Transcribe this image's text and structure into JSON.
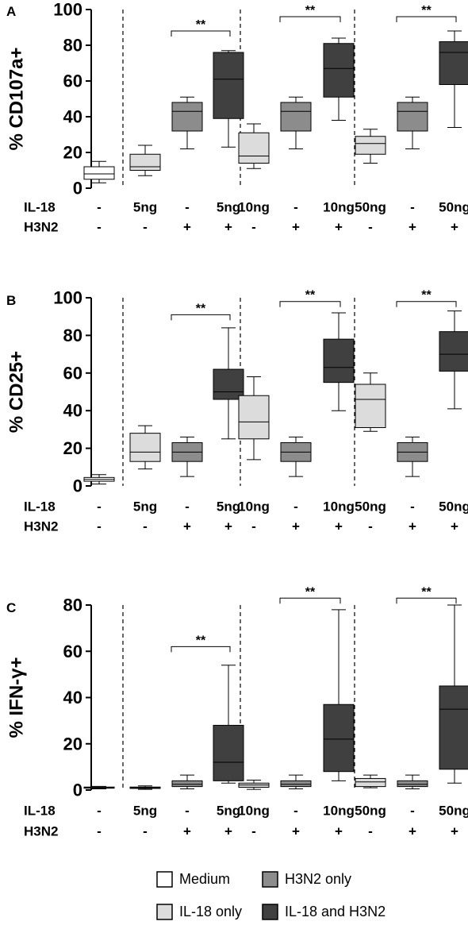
{
  "chart_data": [
    {
      "type": "box",
      "panel_label": "A",
      "ylabel": "% CD107a+",
      "ylim": [
        0,
        100
      ],
      "yticks": [
        0,
        20,
        40,
        60,
        80,
        100
      ],
      "row_labels": [
        "IL-18",
        "H3N2"
      ],
      "groups": [
        {
          "il18": "-",
          "h3n2": "-",
          "series": "Medium",
          "whisker_low": 3,
          "q1": 5,
          "median": 8,
          "q3": 12,
          "whisker_high": 15
        },
        {
          "il18": "5ng",
          "h3n2": "-",
          "series": "IL-18 only",
          "whisker_low": 7,
          "q1": 10,
          "median": 12,
          "q3": 19,
          "whisker_high": 24
        },
        {
          "il18": "-",
          "h3n2": "+",
          "series": "H3N2 only",
          "whisker_low": 22,
          "q1": 32,
          "median": 43,
          "q3": 48,
          "whisker_high": 51
        },
        {
          "il18": "5ng",
          "h3n2": "+",
          "series": "IL-18 and H3N2",
          "whisker_low": 23,
          "q1": 39,
          "median": 61,
          "q3": 76,
          "whisker_high": 77
        },
        {
          "il18": "10ng",
          "h3n2": "-",
          "series": "IL-18 only",
          "whisker_low": 11,
          "q1": 14,
          "median": 18,
          "q3": 31,
          "whisker_high": 36
        },
        {
          "il18": "-",
          "h3n2": "+",
          "series": "H3N2 only",
          "whisker_low": 22,
          "q1": 32,
          "median": 43,
          "q3": 48,
          "whisker_high": 51
        },
        {
          "il18": "10ng",
          "h3n2": "+",
          "series": "IL-18 and H3N2",
          "whisker_low": 38,
          "q1": 51,
          "median": 67,
          "q3": 81,
          "whisker_high": 84
        },
        {
          "il18": "50ng",
          "h3n2": "-",
          "series": "IL-18 only",
          "whisker_low": 14,
          "q1": 19,
          "median": 25,
          "q3": 29,
          "whisker_high": 33
        },
        {
          "il18": "-",
          "h3n2": "+",
          "series": "H3N2 only",
          "whisker_low": 22,
          "q1": 32,
          "median": 43,
          "q3": 48,
          "whisker_high": 51
        },
        {
          "il18": "50ng",
          "h3n2": "+",
          "series": "IL-18 and H3N2",
          "whisker_low": 34,
          "q1": 58,
          "median": 76,
          "q3": 82,
          "whisker_high": 88
        }
      ],
      "dividers_after": [
        0,
        3,
        6
      ],
      "significance": [
        {
          "from": 2,
          "to": 3,
          "label": "**",
          "y": 88
        },
        {
          "from": 5,
          "to": 6,
          "label": "**",
          "y": 96
        },
        {
          "from": 8,
          "to": 9,
          "label": "**",
          "y": 96
        }
      ]
    },
    {
      "type": "box",
      "panel_label": "B",
      "ylabel": "% CD25+",
      "ylim": [
        0,
        100
      ],
      "yticks": [
        0,
        20,
        40,
        60,
        80,
        100
      ],
      "row_labels": [
        "IL-18",
        "H3N2"
      ],
      "groups": [
        {
          "il18": "-",
          "h3n2": "-",
          "series": "Medium",
          "whisker_low": 1,
          "q1": 2.5,
          "median": 3.5,
          "q3": 4.5,
          "whisker_high": 6
        },
        {
          "il18": "5ng",
          "h3n2": "-",
          "series": "IL-18 only",
          "whisker_low": 9,
          "q1": 13,
          "median": 18,
          "q3": 28,
          "whisker_high": 32
        },
        {
          "il18": "-",
          "h3n2": "+",
          "series": "H3N2 only",
          "whisker_low": 5,
          "q1": 13,
          "median": 18,
          "q3": 23,
          "whisker_high": 26
        },
        {
          "il18": "5ng",
          "h3n2": "+",
          "series": "IL-18 and H3N2",
          "whisker_low": 25,
          "q1": 46,
          "median": 50,
          "q3": 62,
          "whisker_high": 84
        },
        {
          "il18": "10ng",
          "h3n2": "-",
          "series": "IL-18 only",
          "whisker_low": 14,
          "q1": 25,
          "median": 34,
          "q3": 48,
          "whisker_high": 58
        },
        {
          "il18": "-",
          "h3n2": "+",
          "series": "H3N2 only",
          "whisker_low": 5,
          "q1": 13,
          "median": 18,
          "q3": 23,
          "whisker_high": 26
        },
        {
          "il18": "10ng",
          "h3n2": "+",
          "series": "IL-18 and H3N2",
          "whisker_low": 40,
          "q1": 55,
          "median": 63,
          "q3": 78,
          "whisker_high": 92
        },
        {
          "il18": "50ng",
          "h3n2": "-",
          "series": "IL-18 only",
          "whisker_low": 29,
          "q1": 31,
          "median": 46,
          "q3": 54,
          "whisker_high": 60
        },
        {
          "il18": "-",
          "h3n2": "+",
          "series": "H3N2 only",
          "whisker_low": 5,
          "q1": 13,
          "median": 18,
          "q3": 23,
          "whisker_high": 26
        },
        {
          "il18": "50ng",
          "h3n2": "+",
          "series": "IL-18 and H3N2",
          "whisker_low": 41,
          "q1": 61,
          "median": 70,
          "q3": 82,
          "whisker_high": 93
        }
      ],
      "dividers_after": [
        0,
        3,
        6
      ],
      "significance": [
        {
          "from": 2,
          "to": 3,
          "label": "**",
          "y": 91
        },
        {
          "from": 5,
          "to": 6,
          "label": "**",
          "y": 98
        },
        {
          "from": 8,
          "to": 9,
          "label": "**",
          "y": 98
        }
      ]
    },
    {
      "type": "box",
      "panel_label": "C",
      "ylabel": "% IFN-γ+",
      "ylim": [
        0,
        80
      ],
      "yticks": [
        0,
        20,
        40,
        60,
        80
      ],
      "row_labels": [
        "IL-18",
        "H3N2"
      ],
      "groups": [
        {
          "il18": "-",
          "h3n2": "-",
          "series": "Medium",
          "whisker_low": 0.5,
          "q1": 0.8,
          "median": 1.0,
          "q3": 1.3,
          "whisker_high": 1.6
        },
        {
          "il18": "5ng",
          "h3n2": "-",
          "series": "IL-18 only",
          "whisker_low": 0.3,
          "q1": 0.7,
          "median": 1.0,
          "q3": 1.3,
          "whisker_high": 1.8
        },
        {
          "il18": "-",
          "h3n2": "+",
          "series": "H3N2 only",
          "whisker_low": 0.5,
          "q1": 1.5,
          "median": 2.5,
          "q3": 4.0,
          "whisker_high": 6.5
        },
        {
          "il18": "5ng",
          "h3n2": "+",
          "series": "IL-18 and H3N2",
          "whisker_low": 3,
          "q1": 4,
          "median": 12,
          "q3": 28,
          "whisker_high": 54
        },
        {
          "il18": "10ng",
          "h3n2": "-",
          "series": "IL-18 only",
          "whisker_low": 0.3,
          "q1": 1.2,
          "median": 2.2,
          "q3": 3.0,
          "whisker_high": 4.3
        },
        {
          "il18": "-",
          "h3n2": "+",
          "series": "H3N2 only",
          "whisker_low": 0.5,
          "q1": 1.5,
          "median": 2.5,
          "q3": 4.0,
          "whisker_high": 6.5
        },
        {
          "il18": "10ng",
          "h3n2": "+",
          "series": "IL-18 and H3N2",
          "whisker_low": 4,
          "q1": 8,
          "median": 22,
          "q3": 37,
          "whisker_high": 78
        },
        {
          "il18": "50ng",
          "h3n2": "-",
          "series": "IL-18 only",
          "whisker_low": 1,
          "q1": 1.5,
          "median": 3.5,
          "q3": 5.0,
          "whisker_high": 6.5
        },
        {
          "il18": "-",
          "h3n2": "+",
          "series": "H3N2 only",
          "whisker_low": 0.5,
          "q1": 1.5,
          "median": 2.5,
          "q3": 4.0,
          "whisker_high": 6.5
        },
        {
          "il18": "50ng",
          "h3n2": "+",
          "series": "IL-18 and H3N2",
          "whisker_low": 3,
          "q1": 9,
          "median": 35,
          "q3": 45,
          "whisker_high": 80
        }
      ],
      "dividers_after": [
        0,
        3,
        6
      ],
      "significance": [
        {
          "from": 2,
          "to": 3,
          "label": "**",
          "y": 62
        },
        {
          "from": 5,
          "to": 6,
          "label": "**",
          "y": 83
        },
        {
          "from": 8,
          "to": 9,
          "label": "**",
          "y": 83
        }
      ]
    }
  ],
  "legend": {
    "items": [
      {
        "label": "Medium",
        "color": "#ffffff"
      },
      {
        "label": "H3N2 only",
        "color": "#8c8c8c"
      },
      {
        "label": "IL-18 only",
        "color": "#dcdcdc"
      },
      {
        "label": "IL-18 and H3N2",
        "color": "#404040"
      }
    ]
  },
  "colors": {
    "Medium": "#ffffff",
    "IL-18 only": "#dcdcdc",
    "H3N2 only": "#8c8c8c",
    "IL-18 and H3N2": "#404040"
  }
}
